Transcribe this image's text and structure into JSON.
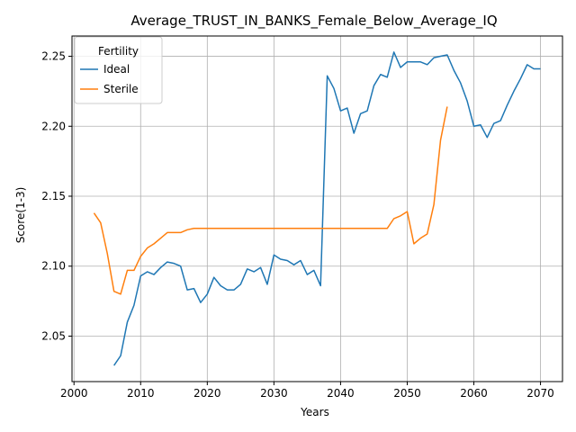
{
  "chart_data": {
    "type": "line",
    "title": "Average_TRUST_IN_BANKS_Female_Below_Average_IQ",
    "xlabel": "Years",
    "ylabel": "Score(1-3)",
    "xlim": [
      1999.7,
      2073.3
    ],
    "ylim": [
      2.0175,
      2.2645
    ],
    "xticks": [
      2000,
      2010,
      2020,
      2030,
      2040,
      2050,
      2060,
      2070
    ],
    "yticks": [
      2.05,
      2.1,
      2.15,
      2.2,
      2.25
    ],
    "ytick_labels": [
      "2.05",
      "2.10",
      "2.15",
      "2.20",
      "2.25"
    ],
    "grid": true,
    "legend": {
      "title": "Fertility",
      "placement": "top-left"
    },
    "series": [
      {
        "name": "Ideal",
        "color": "#1f77b4",
        "x": [
          2006,
          2007,
          2008,
          2009,
          2010,
          2011,
          2012,
          2013,
          2014,
          2015,
          2016,
          2017,
          2018,
          2019,
          2020,
          2021,
          2022,
          2023,
          2024,
          2025,
          2026,
          2027,
          2028,
          2029,
          2030,
          2031,
          2032,
          2033,
          2034,
          2035,
          2036,
          2037,
          2038,
          2039,
          2040,
          2041,
          2042,
          2043,
          2044,
          2045,
          2046,
          2047,
          2048,
          2049,
          2050,
          2051,
          2052,
          2053,
          2054,
          2055,
          2056,
          2057,
          2058,
          2059,
          2060,
          2061,
          2062,
          2063,
          2064,
          2065,
          2066,
          2067,
          2068,
          2069,
          2070
        ],
        "y": [
          2.029,
          2.036,
          2.06,
          2.072,
          2.093,
          2.096,
          2.094,
          2.099,
          2.103,
          2.102,
          2.1,
          2.083,
          2.084,
          2.074,
          2.08,
          2.092,
          2.086,
          2.083,
          2.083,
          2.087,
          2.098,
          2.096,
          2.099,
          2.087,
          2.108,
          2.105,
          2.104,
          2.101,
          2.104,
          2.094,
          2.097,
          2.086,
          2.236,
          2.227,
          2.211,
          2.213,
          2.195,
          2.209,
          2.211,
          2.229,
          2.237,
          2.235,
          2.253,
          2.242,
          2.246,
          2.246,
          2.246,
          2.244,
          2.249,
          2.25,
          2.251,
          2.24,
          2.231,
          2.218,
          2.2,
          2.201,
          2.192,
          2.202,
          2.204,
          2.215,
          2.225,
          2.234,
          2.244,
          2.241,
          2.241
        ]
      },
      {
        "name": "Sterile",
        "color": "#ff7f0e",
        "x": [
          2003,
          2004,
          2005,
          2006,
          2007,
          2008,
          2009,
          2010,
          2011,
          2012,
          2013,
          2014,
          2015,
          2016,
          2017,
          2018,
          2019,
          2020,
          2021,
          2022,
          2023,
          2024,
          2025,
          2026,
          2027,
          2028,
          2029,
          2030,
          2031,
          2032,
          2033,
          2034,
          2035,
          2036,
          2037,
          2038,
          2039,
          2040,
          2041,
          2042,
          2043,
          2044,
          2045,
          2046,
          2047,
          2048,
          2049,
          2050,
          2051,
          2052,
          2053,
          2054,
          2055,
          2056
        ],
        "y": [
          2.138,
          2.131,
          2.109,
          2.082,
          2.08,
          2.097,
          2.097,
          2.107,
          2.113,
          2.116,
          2.12,
          2.124,
          2.124,
          2.124,
          2.126,
          2.127,
          2.127,
          2.127,
          2.127,
          2.127,
          2.127,
          2.127,
          2.127,
          2.127,
          2.127,
          2.127,
          2.127,
          2.127,
          2.127,
          2.127,
          2.127,
          2.127,
          2.127,
          2.127,
          2.127,
          2.127,
          2.127,
          2.127,
          2.127,
          2.127,
          2.127,
          2.127,
          2.127,
          2.127,
          2.127,
          2.134,
          2.136,
          2.139,
          2.116,
          2.12,
          2.123,
          2.144,
          2.19,
          2.214
        ]
      }
    ]
  }
}
